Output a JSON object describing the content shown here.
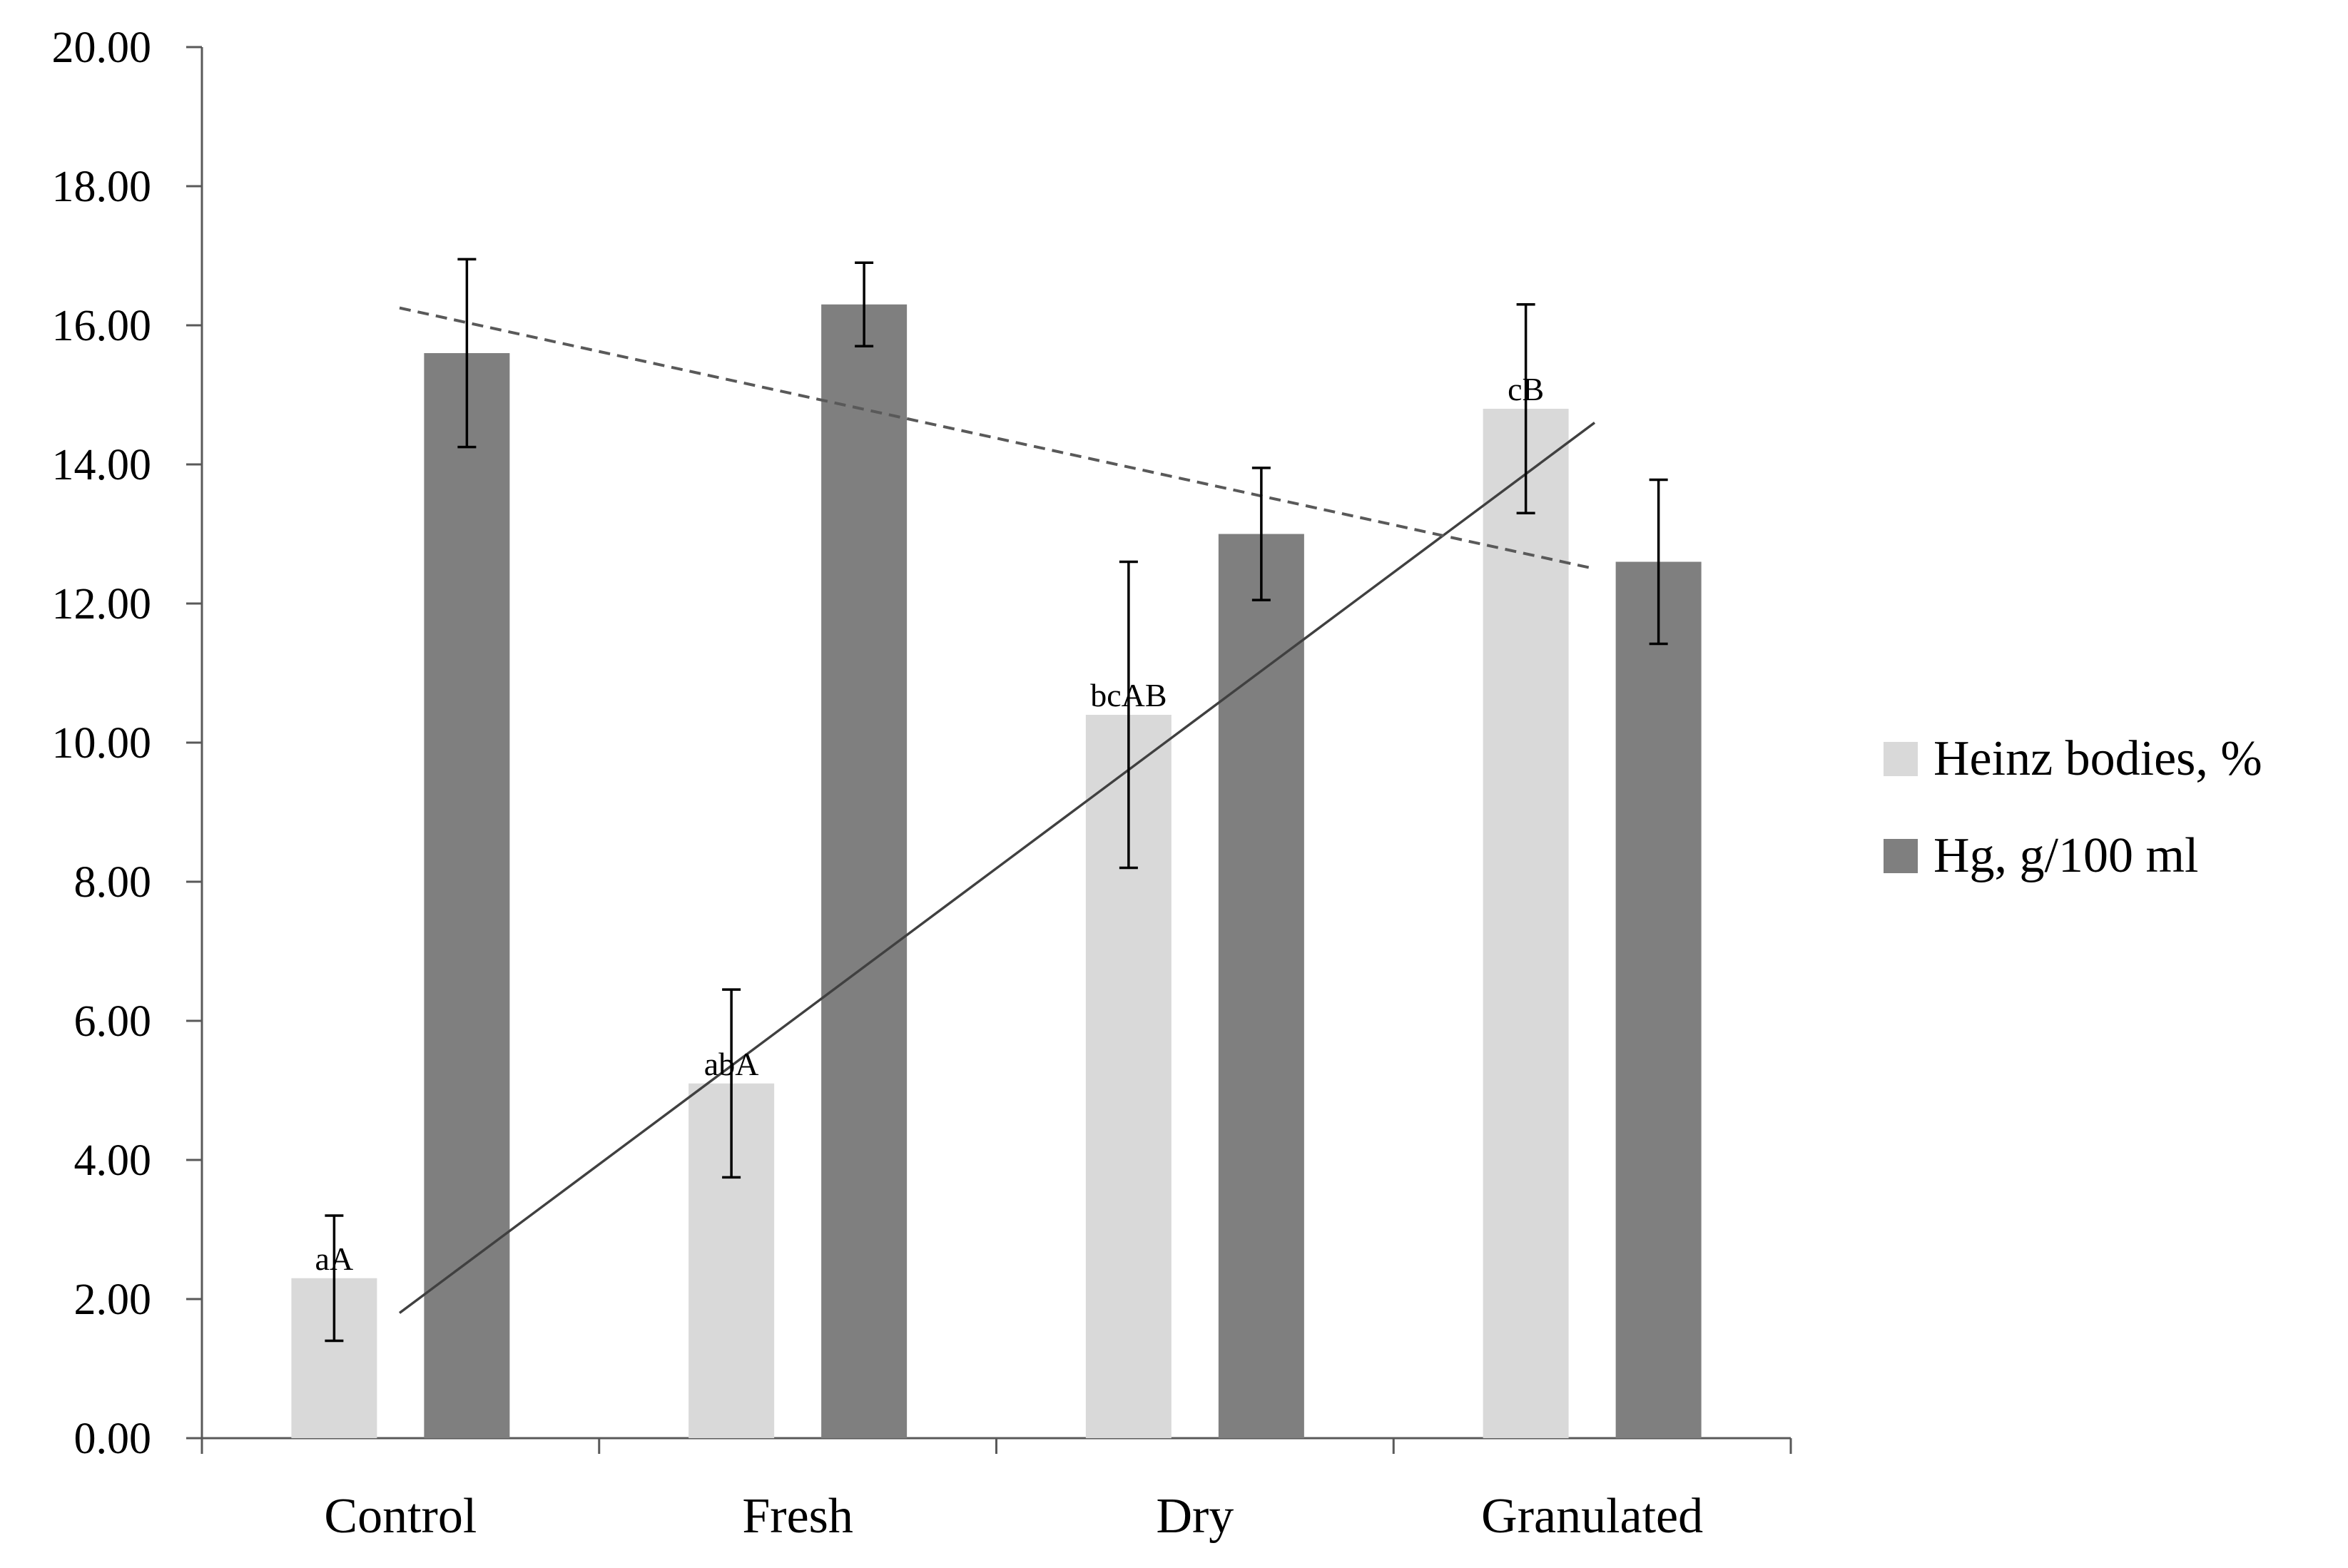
{
  "chart_data": {
    "type": "bar",
    "title": "",
    "xlabel": "",
    "ylabel": "",
    "ylim": [
      0,
      20
    ],
    "ytick_step": 2,
    "ytick_labels": [
      "0.00",
      "2.00",
      "4.00",
      "6.00",
      "8.00",
      "10.00",
      "12.00",
      "14.00",
      "16.00",
      "18.00",
      "20.00"
    ],
    "categories": [
      "Control",
      "Fresh",
      "Dry",
      "Granulated"
    ],
    "series": [
      {
        "name": "Heinz bodies, %",
        "color": "#d9d9d9",
        "values": [
          2.3,
          5.1,
          10.4,
          14.8
        ],
        "error": [
          0.9,
          1.35,
          2.2,
          1.5
        ],
        "annotations": [
          "aA",
          "abA",
          "bcAB",
          "cB"
        ],
        "trendline": {
          "style": "solid",
          "color": "#404040",
          "start": 1.8,
          "end": 14.6
        }
      },
      {
        "name": "Hg, g/100 ml",
        "color": "#7f7f7f",
        "values": [
          15.6,
          16.3,
          13.0,
          12.6
        ],
        "error": [
          1.35,
          0.6,
          0.95,
          1.18
        ],
        "trendline": {
          "style": "dashed",
          "color": "#595959",
          "start": 16.25,
          "end": 12.5
        }
      }
    ],
    "legend_position": "right",
    "grid": false
  }
}
